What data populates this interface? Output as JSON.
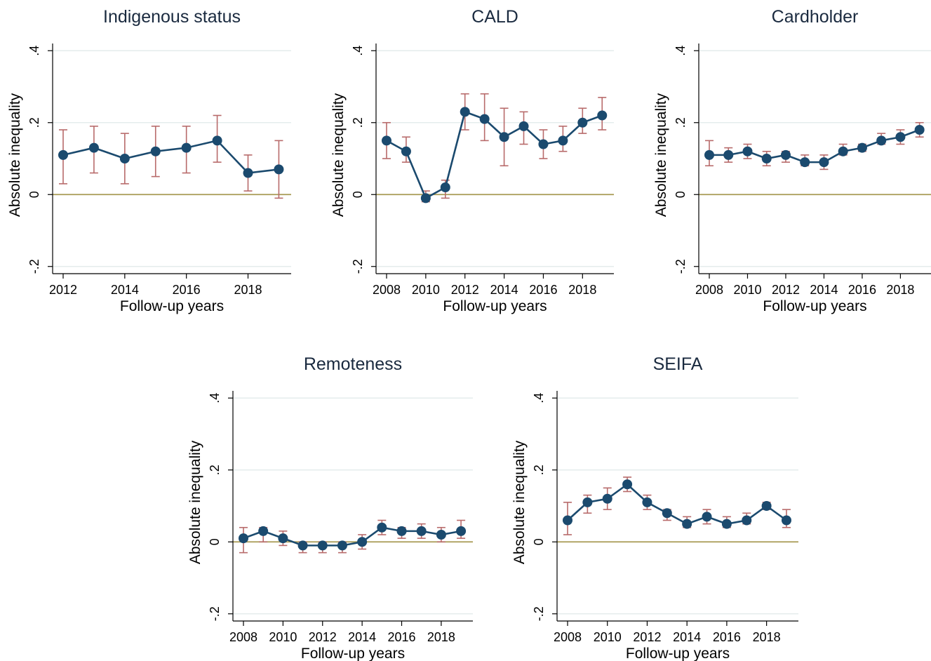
{
  "figure": {
    "style": {
      "line_color": "#1b4a6e",
      "marker_color": "#1b4a6e",
      "ci_color": "#b86b6b",
      "zero_line_color": "#a89a54",
      "grid_color": "#e4ecec",
      "axis_color": "#000000",
      "background": "#ffffff"
    }
  },
  "chart_data": [
    {
      "type": "line",
      "title": "Indigenous status",
      "xlabel": "Follow-up years",
      "ylabel": "Absolute inequality",
      "xlim": [
        2011.9,
        2019.4
      ],
      "ylim": [
        -0.22,
        0.42
      ],
      "yticks": [
        -0.2,
        0,
        0.2,
        0.4
      ],
      "ytick_labels": [
        "-.2",
        "0",
        ".2",
        ".4"
      ],
      "xticks": [
        2012,
        2014,
        2016,
        2018
      ],
      "xtick_labels": [
        "2012",
        "2014",
        "2016",
        "2018"
      ],
      "grid": true,
      "reference_line": 0,
      "x": [
        2012,
        2013,
        2014,
        2015,
        2016,
        2017,
        2018,
        2019
      ],
      "y": [
        0.11,
        0.13,
        0.1,
        0.12,
        0.13,
        0.15,
        0.06,
        0.07
      ],
      "ci_low": [
        0.03,
        0.06,
        0.03,
        0.05,
        0.06,
        0.09,
        0.01,
        -0.01
      ],
      "ci_high": [
        0.18,
        0.19,
        0.17,
        0.19,
        0.19,
        0.22,
        0.11,
        0.15
      ]
    },
    {
      "type": "line",
      "title": "CALD",
      "xlabel": "Follow-up years",
      "ylabel": "Absolute inequality",
      "xlim": [
        2007.7,
        2019.6
      ],
      "ylim": [
        -0.22,
        0.42
      ],
      "yticks": [
        -0.2,
        0,
        0.2,
        0.4
      ],
      "ytick_labels": [
        "-.2",
        "0",
        ".2",
        ".4"
      ],
      "xticks": [
        2008,
        2010,
        2012,
        2014,
        2016,
        2018
      ],
      "xtick_labels": [
        "2008",
        "2010",
        "2012",
        "2014",
        "2016",
        "2018"
      ],
      "grid": true,
      "reference_line": 0,
      "x": [
        2008,
        2009,
        2010,
        2011,
        2012,
        2013,
        2014,
        2015,
        2016,
        2017,
        2018,
        2019
      ],
      "y": [
        0.15,
        0.12,
        -0.01,
        0.02,
        0.23,
        0.21,
        0.16,
        0.19,
        0.14,
        0.15,
        0.2,
        0.22
      ],
      "ci_low": [
        0.1,
        0.09,
        -0.02,
        -0.01,
        0.18,
        0.15,
        0.08,
        0.14,
        0.1,
        0.12,
        0.17,
        0.18
      ],
      "ci_high": [
        0.2,
        0.16,
        0.01,
        0.04,
        0.28,
        0.28,
        0.24,
        0.23,
        0.18,
        0.19,
        0.24,
        0.27
      ]
    },
    {
      "type": "line",
      "title": "Cardholder",
      "xlabel": "Follow-up years",
      "ylabel": "Absolute inequality",
      "xlim": [
        2007.7,
        2019.6
      ],
      "ylim": [
        -0.22,
        0.42
      ],
      "yticks": [
        -0.2,
        0,
        0.2,
        0.4
      ],
      "ytick_labels": [
        "-.2",
        "0",
        ".2",
        ".4"
      ],
      "xticks": [
        2008,
        2010,
        2012,
        2014,
        2016,
        2018
      ],
      "xtick_labels": [
        "2008",
        "2010",
        "2012",
        "2014",
        "2016",
        "2018"
      ],
      "grid": true,
      "reference_line": 0,
      "x": [
        2008,
        2009,
        2010,
        2011,
        2012,
        2013,
        2014,
        2015,
        2016,
        2017,
        2018,
        2019
      ],
      "y": [
        0.11,
        0.11,
        0.12,
        0.1,
        0.11,
        0.09,
        0.09,
        0.12,
        0.13,
        0.15,
        0.16,
        0.18
      ],
      "ci_low": [
        0.08,
        0.09,
        0.1,
        0.08,
        0.09,
        0.08,
        0.07,
        0.11,
        0.12,
        0.14,
        0.14,
        0.16
      ],
      "ci_high": [
        0.15,
        0.13,
        0.14,
        0.12,
        0.12,
        0.11,
        0.11,
        0.14,
        0.14,
        0.17,
        0.18,
        0.2
      ]
    },
    {
      "type": "line",
      "title": "Remoteness",
      "xlabel": "Follow-up years",
      "ylabel": "Absolute inequality",
      "xlim": [
        2007.7,
        2019.6
      ],
      "ylim": [
        -0.22,
        0.42
      ],
      "yticks": [
        -0.2,
        0,
        0.2,
        0.4
      ],
      "ytick_labels": [
        "-.2",
        "0",
        ".2",
        ".4"
      ],
      "xticks": [
        2008,
        2010,
        2012,
        2014,
        2016,
        2018
      ],
      "xtick_labels": [
        "2008",
        "2010",
        "2012",
        "2014",
        "2016",
        "2018"
      ],
      "grid": true,
      "reference_line": 0,
      "x": [
        2008,
        2009,
        2010,
        2011,
        2012,
        2013,
        2014,
        2015,
        2016,
        2017,
        2018,
        2019
      ],
      "y": [
        0.01,
        0.03,
        0.01,
        -0.01,
        -0.01,
        -0.01,
        0.0,
        0.04,
        0.03,
        0.03,
        0.02,
        0.03
      ],
      "ci_low": [
        -0.03,
        0.0,
        -0.01,
        -0.03,
        -0.03,
        -0.03,
        -0.02,
        0.02,
        0.01,
        0.01,
        0.0,
        0.01
      ],
      "ci_high": [
        0.04,
        0.04,
        0.03,
        0.0,
        0.0,
        0.0,
        0.02,
        0.06,
        0.04,
        0.05,
        0.04,
        0.06
      ]
    },
    {
      "type": "line",
      "title": "SEIFA",
      "xlabel": "Follow-up years",
      "ylabel": "Absolute inequality",
      "xlim": [
        2007.7,
        2019.6
      ],
      "ylim": [
        -0.22,
        0.42
      ],
      "yticks": [
        -0.2,
        0,
        0.2,
        0.4
      ],
      "ytick_labels": [
        "-.2",
        "0",
        ".2",
        ".4"
      ],
      "xticks": [
        2008,
        2010,
        2012,
        2014,
        2016,
        2018
      ],
      "xtick_labels": [
        "2008",
        "2010",
        "2012",
        "2014",
        "2016",
        "2018"
      ],
      "grid": true,
      "reference_line": 0,
      "x": [
        2008,
        2009,
        2010,
        2011,
        2012,
        2013,
        2014,
        2015,
        2016,
        2017,
        2018,
        2019
      ],
      "y": [
        0.06,
        0.11,
        0.12,
        0.16,
        0.11,
        0.08,
        0.05,
        0.07,
        0.05,
        0.06,
        0.1,
        0.06
      ],
      "ci_low": [
        0.02,
        0.08,
        0.09,
        0.14,
        0.09,
        0.06,
        0.04,
        0.05,
        0.04,
        0.05,
        0.09,
        0.04
      ],
      "ci_high": [
        0.11,
        0.13,
        0.15,
        0.18,
        0.13,
        0.09,
        0.07,
        0.09,
        0.07,
        0.08,
        0.11,
        0.09
      ]
    }
  ]
}
